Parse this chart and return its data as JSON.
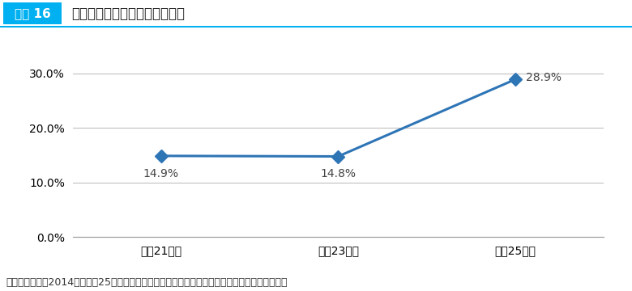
{
  "title_box_label": "図表 16",
  "title_main": "企業の災害時応援協定の締結率",
  "categories": [
    "平成21年度",
    "平成23年度",
    "平成25年度"
  ],
  "values": [
    14.9,
    14.8,
    28.9
  ],
  "labels": [
    "14.9%",
    "14.8%",
    "28.9%"
  ],
  "ylim": [
    0.0,
    32.0
  ],
  "yticks": [
    0.0,
    10.0,
    20.0,
    30.0
  ],
  "ytick_labels": [
    "0.0%",
    "10.0%",
    "20.0%",
    "30.0%"
  ],
  "line_color": "#2E75B6",
  "marker_color": "#2E75B6",
  "marker_size": 8,
  "line_width": 2.2,
  "footnote": "出典：内閣府（2014）「平成25年度企業の事業継続及び防災の取組に関する実態調査」より作成",
  "header_bg": "#00B0F0",
  "header_text_color": "#FFFFFF",
  "bg_color": "#FFFFFF",
  "grid_color": "#C0C0C0",
  "label_fontsize": 10,
  "axis_fontsize": 10,
  "footnote_fontsize": 9,
  "title_fontsize": 12,
  "header_label_fontsize": 11
}
